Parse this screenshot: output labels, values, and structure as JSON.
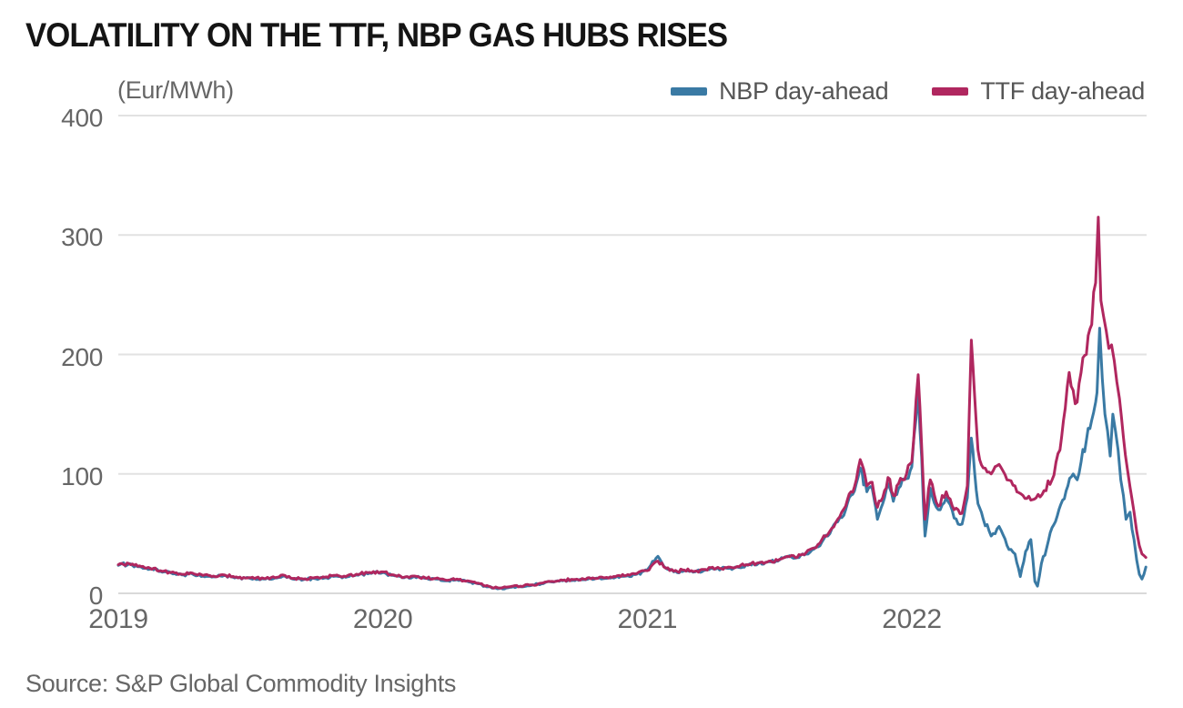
{
  "header": {
    "title": "VOLATILITY ON THE TTF, NBP GAS HUBS RISES"
  },
  "footer": {
    "source": "Source: S&P Global Commodity Insights"
  },
  "chart_data": {
    "type": "line",
    "title": "VOLATILITY ON THE TTF, NBP GAS HUBS RISES",
    "unit_label": "(Eur/MWh)",
    "source": "Source: S&P Global Commodity Insights",
    "grid": "horizontal-only",
    "legend_position": "top-right",
    "x_axis": {
      "ticks": [
        "2019",
        "2020",
        "2021",
        "2022"
      ],
      "tick_years": [
        2019,
        2020,
        2021,
        2022
      ],
      "range_years": [
        2019.0,
        2022.89
      ]
    },
    "y_axis": {
      "ticks": [
        "400",
        "300",
        "200",
        "100",
        "0"
      ],
      "tick_values": [
        400,
        300,
        200,
        100,
        0
      ],
      "range": [
        0,
        400
      ]
    },
    "series": [
      {
        "name": "NBP day-ahead",
        "color": "#3a7aa4",
        "points": [
          [
            2019.0,
            23.5
          ],
          [
            2019.04,
            24.5
          ],
          [
            2019.08,
            22.3
          ],
          [
            2019.12,
            20.3
          ],
          [
            2019.16,
            18.4
          ],
          [
            2019.2,
            17.0
          ],
          [
            2019.24,
            15.4
          ],
          [
            2019.28,
            16.3
          ],
          [
            2019.32,
            14.4
          ],
          [
            2019.36,
            13.9
          ],
          [
            2019.4,
            14.9
          ],
          [
            2019.44,
            12.9
          ],
          [
            2019.5,
            12.4
          ],
          [
            2019.55,
            12.0
          ],
          [
            2019.6,
            12.9
          ],
          [
            2019.63,
            14.4
          ],
          [
            2019.66,
            12.0
          ],
          [
            2019.7,
            11.5
          ],
          [
            2019.74,
            12.4
          ],
          [
            2019.78,
            12.9
          ],
          [
            2019.82,
            14.4
          ],
          [
            2019.86,
            13.4
          ],
          [
            2019.9,
            15.4
          ],
          [
            2019.95,
            16.9
          ],
          [
            2020.0,
            17.4
          ],
          [
            2020.04,
            15.0
          ],
          [
            2020.08,
            13.0
          ],
          [
            2020.12,
            14.0
          ],
          [
            2020.16,
            12.5
          ],
          [
            2020.2,
            12.0
          ],
          [
            2020.24,
            10.5
          ],
          [
            2020.28,
            11.5
          ],
          [
            2020.32,
            10.0
          ],
          [
            2020.36,
            8.0
          ],
          [
            2020.4,
            5.5
          ],
          [
            2020.44,
            4.0
          ],
          [
            2020.48,
            5.0
          ],
          [
            2020.52,
            5.5
          ],
          [
            2020.56,
            6.5
          ],
          [
            2020.6,
            8.0
          ],
          [
            2020.64,
            9.5
          ],
          [
            2020.68,
            10.5
          ],
          [
            2020.72,
            11.0
          ],
          [
            2020.76,
            11.5
          ],
          [
            2020.8,
            12.0
          ],
          [
            2020.84,
            12.5
          ],
          [
            2020.88,
            13.5
          ],
          [
            2020.92,
            14.5
          ],
          [
            2020.96,
            16.0
          ],
          [
            2021.0,
            19.5
          ],
          [
            2021.04,
            31.0
          ],
          [
            2021.07,
            21.0
          ],
          [
            2021.1,
            18.0
          ],
          [
            2021.14,
            19.0
          ],
          [
            2021.18,
            18.0
          ],
          [
            2021.22,
            19.5
          ],
          [
            2021.26,
            20.5
          ],
          [
            2021.3,
            21.0
          ],
          [
            2021.34,
            22.0
          ],
          [
            2021.38,
            23.5
          ],
          [
            2021.42,
            25.0
          ],
          [
            2021.46,
            26.5
          ],
          [
            2021.5,
            28.0
          ],
          [
            2021.53,
            30.5
          ],
          [
            2021.56,
            29.5
          ],
          [
            2021.6,
            33.0
          ],
          [
            2021.63,
            37.0
          ],
          [
            2021.66,
            43.0
          ],
          [
            2021.69,
            50.0
          ],
          [
            2021.72,
            60.0
          ],
          [
            2021.75,
            70.0
          ],
          [
            2021.77,
            82.0
          ],
          [
            2021.79,
            92.0
          ],
          [
            2021.805,
            105.0
          ],
          [
            2021.83,
            85.0
          ],
          [
            2021.85,
            88.0
          ],
          [
            2021.87,
            62.0
          ],
          [
            2021.89,
            75.0
          ],
          [
            2021.91,
            92.0
          ],
          [
            2021.93,
            77.0
          ],
          [
            2021.95,
            88.0
          ],
          [
            2021.98,
            96.0
          ],
          [
            2022.0,
            106.0
          ],
          [
            2022.024,
            170.0
          ],
          [
            2022.05,
            48.0
          ],
          [
            2022.07,
            88.0
          ],
          [
            2022.1,
            70.0
          ],
          [
            2022.13,
            80.0
          ],
          [
            2022.16,
            63.0
          ],
          [
            2022.19,
            58.0
          ],
          [
            2022.21,
            80.0
          ],
          [
            2022.225,
            130.0
          ],
          [
            2022.25,
            75.0
          ],
          [
            2022.27,
            62.0
          ],
          [
            2022.3,
            48.0
          ],
          [
            2022.33,
            56.0
          ],
          [
            2022.36,
            40.0
          ],
          [
            2022.39,
            33.0
          ],
          [
            2022.41,
            14.0
          ],
          [
            2022.43,
            35.0
          ],
          [
            2022.45,
            45.0
          ],
          [
            2022.465,
            10.0
          ],
          [
            2022.475,
            6.0
          ],
          [
            2022.49,
            25.0
          ],
          [
            2022.51,
            38.0
          ],
          [
            2022.53,
            55.0
          ],
          [
            2022.55,
            65.0
          ],
          [
            2022.57,
            78.0
          ],
          [
            2022.59,
            90.0
          ],
          [
            2022.61,
            100.0
          ],
          [
            2022.625,
            95.0
          ],
          [
            2022.64,
            110.0
          ],
          [
            2022.66,
            128.0
          ],
          [
            2022.68,
            145.0
          ],
          [
            2022.695,
            160.0
          ],
          [
            2022.7,
            168.0
          ],
          [
            2022.71,
            222.0
          ],
          [
            2022.72,
            180.0
          ],
          [
            2022.73,
            150.0
          ],
          [
            2022.74,
            136.0
          ],
          [
            2022.75,
            115.0
          ],
          [
            2022.76,
            150.0
          ],
          [
            2022.77,
            136.0
          ],
          [
            2022.78,
            120.0
          ],
          [
            2022.79,
            95.0
          ],
          [
            2022.8,
            82.0
          ],
          [
            2022.81,
            62.0
          ],
          [
            2022.825,
            68.0
          ],
          [
            2022.84,
            45.0
          ],
          [
            2022.85,
            28.0
          ],
          [
            2022.86,
            16.0
          ],
          [
            2022.87,
            12.0
          ],
          [
            2022.885,
            22.0
          ]
        ]
      },
      {
        "name": "TTF day-ahead",
        "color": "#b0275f",
        "points": [
          [
            2019.0,
            24.0
          ],
          [
            2019.04,
            25.0
          ],
          [
            2019.08,
            23.0
          ],
          [
            2019.12,
            21.0
          ],
          [
            2019.16,
            19.0
          ],
          [
            2019.2,
            17.5
          ],
          [
            2019.24,
            16.0
          ],
          [
            2019.28,
            17.0
          ],
          [
            2019.32,
            15.0
          ],
          [
            2019.36,
            14.5
          ],
          [
            2019.4,
            15.5
          ],
          [
            2019.44,
            13.5
          ],
          [
            2019.5,
            13.0
          ],
          [
            2019.55,
            12.5
          ],
          [
            2019.6,
            13.5
          ],
          [
            2019.63,
            15.0
          ],
          [
            2019.66,
            12.5
          ],
          [
            2019.7,
            12.0
          ],
          [
            2019.74,
            13.0
          ],
          [
            2019.78,
            13.5
          ],
          [
            2019.82,
            15.0
          ],
          [
            2019.86,
            14.0
          ],
          [
            2019.9,
            16.0
          ],
          [
            2019.95,
            17.5
          ],
          [
            2020.0,
            18.0
          ],
          [
            2020.04,
            15.5
          ],
          [
            2020.08,
            13.5
          ],
          [
            2020.12,
            14.5
          ],
          [
            2020.16,
            13.0
          ],
          [
            2020.2,
            12.5
          ],
          [
            2020.24,
            11.0
          ],
          [
            2020.28,
            12.0
          ],
          [
            2020.32,
            10.5
          ],
          [
            2020.36,
            8.5
          ],
          [
            2020.4,
            6.0
          ],
          [
            2020.44,
            4.5
          ],
          [
            2020.48,
            5.5
          ],
          [
            2020.52,
            6.0
          ],
          [
            2020.56,
            7.0
          ],
          [
            2020.6,
            8.5
          ],
          [
            2020.64,
            10.0
          ],
          [
            2020.68,
            11.0
          ],
          [
            2020.72,
            11.5
          ],
          [
            2020.76,
            12.0
          ],
          [
            2020.8,
            12.5
          ],
          [
            2020.84,
            13.0
          ],
          [
            2020.88,
            14.0
          ],
          [
            2020.92,
            15.0
          ],
          [
            2020.96,
            16.5
          ],
          [
            2021.0,
            19.0
          ],
          [
            2021.04,
            27.0
          ],
          [
            2021.07,
            21.0
          ],
          [
            2021.1,
            18.5
          ],
          [
            2021.14,
            19.5
          ],
          [
            2021.18,
            18.5
          ],
          [
            2021.22,
            20.0
          ],
          [
            2021.26,
            21.0
          ],
          [
            2021.3,
            21.5
          ],
          [
            2021.34,
            22.5
          ],
          [
            2021.38,
            24.0
          ],
          [
            2021.42,
            25.5
          ],
          [
            2021.46,
            27.0
          ],
          [
            2021.5,
            28.5
          ],
          [
            2021.53,
            31.0
          ],
          [
            2021.56,
            30.0
          ],
          [
            2021.6,
            34.0
          ],
          [
            2021.63,
            38.0
          ],
          [
            2021.66,
            45.0
          ],
          [
            2021.69,
            52.0
          ],
          [
            2021.72,
            62.0
          ],
          [
            2021.75,
            73.0
          ],
          [
            2021.77,
            85.0
          ],
          [
            2021.79,
            95.0
          ],
          [
            2021.805,
            112.0
          ],
          [
            2021.83,
            90.0
          ],
          [
            2021.85,
            93.0
          ],
          [
            2021.87,
            72.0
          ],
          [
            2021.89,
            80.0
          ],
          [
            2021.91,
            97.0
          ],
          [
            2021.93,
            82.0
          ],
          [
            2021.95,
            92.0
          ],
          [
            2021.98,
            100.0
          ],
          [
            2022.0,
            110.0
          ],
          [
            2022.024,
            183.0
          ],
          [
            2022.05,
            62.0
          ],
          [
            2022.07,
            95.0
          ],
          [
            2022.1,
            73.0
          ],
          [
            2022.13,
            85.0
          ],
          [
            2022.16,
            70.0
          ],
          [
            2022.19,
            67.0
          ],
          [
            2022.21,
            90.0
          ],
          [
            2022.225,
            212.0
          ],
          [
            2022.25,
            120.0
          ],
          [
            2022.27,
            105.0
          ],
          [
            2022.3,
            100.0
          ],
          [
            2022.33,
            108.0
          ],
          [
            2022.36,
            95.0
          ],
          [
            2022.39,
            90.0
          ],
          [
            2022.42,
            82.0
          ],
          [
            2022.45,
            78.0
          ],
          [
            2022.47,
            80.0
          ],
          [
            2022.5,
            86.0
          ],
          [
            2022.53,
            95.0
          ],
          [
            2022.56,
            120.0
          ],
          [
            2022.58,
            155.0
          ],
          [
            2022.595,
            185.0
          ],
          [
            2022.61,
            170.0
          ],
          [
            2022.625,
            160.0
          ],
          [
            2022.64,
            185.0
          ],
          [
            2022.66,
            200.0
          ],
          [
            2022.68,
            225.0
          ],
          [
            2022.695,
            260.0
          ],
          [
            2022.705,
            315.0
          ],
          [
            2022.715,
            245.0
          ],
          [
            2022.725,
            232.0
          ],
          [
            2022.735,
            220.0
          ],
          [
            2022.745,
            205.0
          ],
          [
            2022.755,
            208.0
          ],
          [
            2022.765,
            195.0
          ],
          [
            2022.775,
            177.0
          ],
          [
            2022.785,
            163.0
          ],
          [
            2022.8,
            131.0
          ],
          [
            2022.815,
            104.0
          ],
          [
            2022.825,
            89.0
          ],
          [
            2022.84,
            68.0
          ],
          [
            2022.85,
            52.0
          ],
          [
            2022.86,
            40.0
          ],
          [
            2022.87,
            33.0
          ],
          [
            2022.885,
            30.0
          ]
        ]
      }
    ],
    "colors": {
      "grid": "#e2e2e2",
      "zero_line": "#d9d9d9",
      "axis_text": "#666666",
      "title_text": "#141414"
    }
  }
}
